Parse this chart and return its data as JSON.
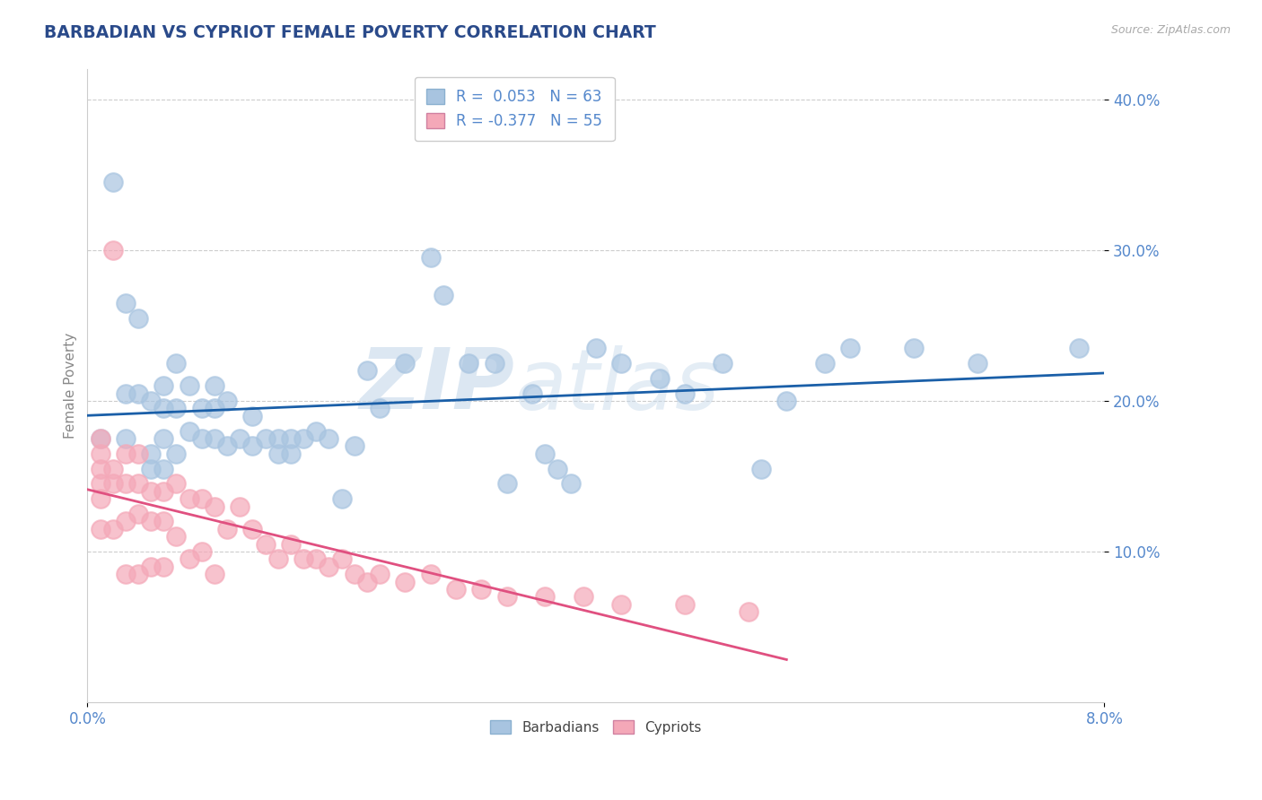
{
  "title": "BARBADIAN VS CYPRIOT FEMALE POVERTY CORRELATION CHART",
  "source_text": "Source: ZipAtlas.com",
  "ylabel": "Female Poverty",
  "ytick_labels": [
    "10.0%",
    "20.0%",
    "30.0%",
    "40.0%"
  ],
  "ytick_values": [
    0.1,
    0.2,
    0.3,
    0.4
  ],
  "xtick_labels": [
    "0.0%",
    "8.0%"
  ],
  "xtick_values": [
    0.0,
    0.08
  ],
  "xmin": 0.0,
  "xmax": 0.08,
  "ymin": 0.0,
  "ymax": 0.42,
  "barbadian_R": 0.053,
  "barbadian_N": 63,
  "cypriot_R": -0.377,
  "cypriot_N": 55,
  "barbadian_color": "#a8c4e0",
  "cypriot_color": "#f4a8b8",
  "barbadian_line_color": "#1a5fa8",
  "cypriot_line_color": "#e05080",
  "legend_label_barbadian": "Barbadians",
  "legend_label_cypriot": "Cypriots",
  "watermark_zip": "ZIP",
  "watermark_atlas": "atlas",
  "background_color": "#ffffff",
  "grid_color": "#cccccc",
  "title_color": "#2a4a8a",
  "axis_label_color": "#5588cc",
  "barbadian_x": [
    0.001,
    0.002,
    0.003,
    0.003,
    0.003,
    0.004,
    0.004,
    0.005,
    0.005,
    0.005,
    0.006,
    0.006,
    0.006,
    0.006,
    0.007,
    0.007,
    0.007,
    0.008,
    0.008,
    0.009,
    0.009,
    0.01,
    0.01,
    0.01,
    0.011,
    0.011,
    0.012,
    0.013,
    0.013,
    0.014,
    0.015,
    0.015,
    0.016,
    0.016,
    0.017,
    0.018,
    0.019,
    0.02,
    0.021,
    0.022,
    0.023,
    0.025,
    0.027,
    0.028,
    0.03,
    0.032,
    0.033,
    0.035,
    0.036,
    0.037,
    0.038,
    0.04,
    0.042,
    0.045,
    0.047,
    0.05,
    0.053,
    0.055,
    0.058,
    0.06,
    0.065,
    0.07,
    0.078
  ],
  "barbadian_y": [
    0.175,
    0.345,
    0.265,
    0.205,
    0.175,
    0.255,
    0.205,
    0.2,
    0.165,
    0.155,
    0.21,
    0.195,
    0.175,
    0.155,
    0.225,
    0.195,
    0.165,
    0.21,
    0.18,
    0.195,
    0.175,
    0.21,
    0.195,
    0.175,
    0.2,
    0.17,
    0.175,
    0.19,
    0.17,
    0.175,
    0.165,
    0.175,
    0.175,
    0.165,
    0.175,
    0.18,
    0.175,
    0.135,
    0.17,
    0.22,
    0.195,
    0.225,
    0.295,
    0.27,
    0.225,
    0.225,
    0.145,
    0.205,
    0.165,
    0.155,
    0.145,
    0.235,
    0.225,
    0.215,
    0.205,
    0.225,
    0.155,
    0.2,
    0.225,
    0.235,
    0.235,
    0.225,
    0.235
  ],
  "cypriot_x": [
    0.001,
    0.001,
    0.001,
    0.001,
    0.001,
    0.001,
    0.002,
    0.002,
    0.002,
    0.002,
    0.003,
    0.003,
    0.003,
    0.003,
    0.004,
    0.004,
    0.004,
    0.004,
    0.005,
    0.005,
    0.005,
    0.006,
    0.006,
    0.006,
    0.007,
    0.007,
    0.008,
    0.008,
    0.009,
    0.009,
    0.01,
    0.01,
    0.011,
    0.012,
    0.013,
    0.014,
    0.015,
    0.016,
    0.017,
    0.018,
    0.019,
    0.02,
    0.021,
    0.022,
    0.023,
    0.025,
    0.027,
    0.029,
    0.031,
    0.033,
    0.036,
    0.039,
    0.042,
    0.047,
    0.052
  ],
  "cypriot_y": [
    0.175,
    0.165,
    0.155,
    0.145,
    0.135,
    0.115,
    0.3,
    0.155,
    0.145,
    0.115,
    0.165,
    0.145,
    0.12,
    0.085,
    0.165,
    0.145,
    0.125,
    0.085,
    0.14,
    0.12,
    0.09,
    0.14,
    0.12,
    0.09,
    0.145,
    0.11,
    0.135,
    0.095,
    0.135,
    0.1,
    0.13,
    0.085,
    0.115,
    0.13,
    0.115,
    0.105,
    0.095,
    0.105,
    0.095,
    0.095,
    0.09,
    0.095,
    0.085,
    0.08,
    0.085,
    0.08,
    0.085,
    0.075,
    0.075,
    0.07,
    0.07,
    0.07,
    0.065,
    0.065,
    0.06
  ]
}
